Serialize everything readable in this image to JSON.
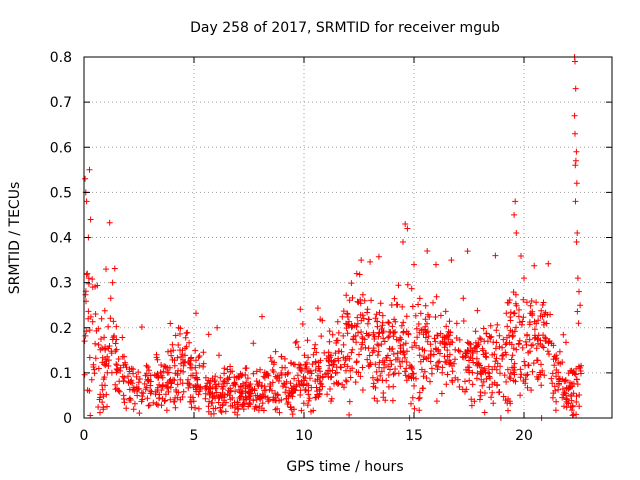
{
  "chart_data": {
    "type": "scatter",
    "title": "Day 258 of 2017, SRMTID for receiver mgub",
    "xlabel": "GPS time / hours",
    "ylabel": "SRMTID / TECUs",
    "xlim": [
      0,
      24
    ],
    "ylim": [
      0,
      0.8
    ],
    "xticks": [
      0,
      5,
      10,
      15,
      20
    ],
    "xtick_labels": [
      "0",
      "5",
      "10",
      "15",
      "20"
    ],
    "yticks": [
      0,
      0.1,
      0.2,
      0.3,
      0.4,
      0.5,
      0.6,
      0.7,
      0.8
    ],
    "ytick_labels": [
      "0",
      "0.1",
      "0.2",
      "0.3",
      "0.4",
      "0.5",
      "0.6",
      "0.7",
      "0.8"
    ],
    "grid": true,
    "marker": "+",
    "series": [
      {
        "name": "SRMTID",
        "color": "#ff0000",
        "envelope": {
          "x": [
            0,
            0.1,
            0.4,
            0.8,
            1.2,
            1.6,
            2.0,
            3.0,
            4.0,
            4.5,
            5.0,
            6.0,
            7.0,
            8.0,
            9.0,
            10.0,
            11.0,
            12.0,
            12.6,
            13.5,
            14.5,
            15.0,
            16.0,
            17.0,
            18.0,
            19.0,
            19.6,
            20.2,
            21.0,
            21.6,
            22.2,
            22.6
          ],
          "median": [
            0.14,
            0.18,
            0.15,
            0.12,
            0.14,
            0.1,
            0.07,
            0.07,
            0.08,
            0.11,
            0.08,
            0.06,
            0.05,
            0.06,
            0.07,
            0.08,
            0.1,
            0.15,
            0.17,
            0.14,
            0.16,
            0.14,
            0.15,
            0.14,
            0.12,
            0.13,
            0.16,
            0.16,
            0.17,
            0.08,
            0.05,
            0.09
          ],
          "spread": [
            0.1,
            0.12,
            0.1,
            0.07,
            0.08,
            0.05,
            0.04,
            0.04,
            0.05,
            0.05,
            0.05,
            0.04,
            0.04,
            0.04,
            0.04,
            0.05,
            0.06,
            0.07,
            0.08,
            0.07,
            0.08,
            0.08,
            0.07,
            0.07,
            0.06,
            0.07,
            0.09,
            0.07,
            0.06,
            0.05,
            0.04,
            0.05
          ]
        },
        "highlights": [
          {
            "x": 0.05,
            "y": 0.53
          },
          {
            "x": 0.08,
            "y": 0.5
          },
          {
            "x": 0.12,
            "y": 0.48
          },
          {
            "x": 0.25,
            "y": 0.55
          },
          {
            "x": 0.3,
            "y": 0.44
          },
          {
            "x": 0.2,
            "y": 0.4
          },
          {
            "x": 0.15,
            "y": 0.32
          },
          {
            "x": 0.22,
            "y": 0.31
          },
          {
            "x": 0.4,
            "y": 0.29
          },
          {
            "x": 1.0,
            "y": 0.33
          },
          {
            "x": 1.3,
            "y": 0.3
          },
          {
            "x": 4.3,
            "y": 0.2
          },
          {
            "x": 12.6,
            "y": 0.35
          },
          {
            "x": 12.4,
            "y": 0.32
          },
          {
            "x": 14.6,
            "y": 0.43
          },
          {
            "x": 14.7,
            "y": 0.42
          },
          {
            "x": 14.5,
            "y": 0.39
          },
          {
            "x": 15.0,
            "y": 0.34
          },
          {
            "x": 15.6,
            "y": 0.37
          },
          {
            "x": 16.0,
            "y": 0.34
          },
          {
            "x": 16.7,
            "y": 0.35
          },
          {
            "x": 18.7,
            "y": 0.36
          },
          {
            "x": 19.6,
            "y": 0.48
          },
          {
            "x": 19.55,
            "y": 0.45
          },
          {
            "x": 19.65,
            "y": 0.41
          },
          {
            "x": 20.0,
            "y": 0.31
          },
          {
            "x": 22.3,
            "y": 0.8
          },
          {
            "x": 22.32,
            "y": 0.79
          },
          {
            "x": 22.35,
            "y": 0.73
          },
          {
            "x": 22.3,
            "y": 0.67
          },
          {
            "x": 22.32,
            "y": 0.63
          },
          {
            "x": 22.38,
            "y": 0.59
          },
          {
            "x": 22.36,
            "y": 0.57
          },
          {
            "x": 22.33,
            "y": 0.56
          },
          {
            "x": 22.4,
            "y": 0.52
          },
          {
            "x": 22.34,
            "y": 0.48
          },
          {
            "x": 22.42,
            "y": 0.41
          },
          {
            "x": 22.39,
            "y": 0.39
          },
          {
            "x": 22.45,
            "y": 0.31
          },
          {
            "x": 22.5,
            "y": 0.28
          },
          {
            "x": 22.55,
            "y": 0.25
          },
          {
            "x": 22.48,
            "y": 0.21
          },
          {
            "x": 18.95,
            "y": 0.0
          },
          {
            "x": 20.8,
            "y": 0.0
          },
          {
            "x": 14.8,
            "y": 0.0
          }
        ]
      }
    ]
  }
}
